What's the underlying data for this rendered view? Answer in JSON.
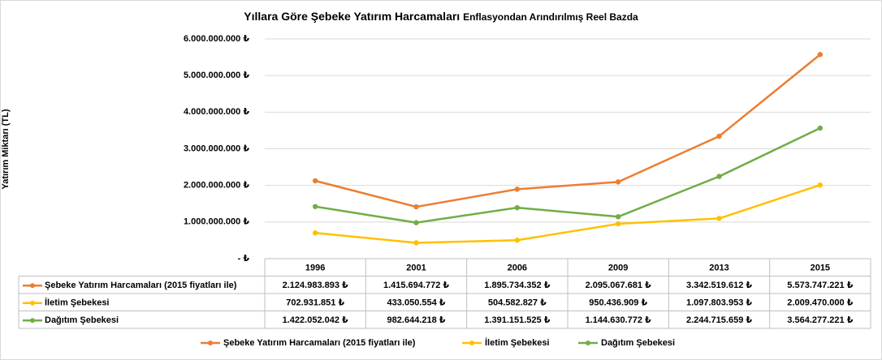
{
  "chart_data": {
    "type": "line",
    "title": "Yıllara Göre Şebeke Yatırım Harcamaları",
    "subtitle": "Enflasyondan Arındırılmış Reel Bazda",
    "ylabel": "Yatırım Miktarı  (TL)",
    "xlabel": "",
    "categories": [
      "1996",
      "2001",
      "2006",
      "2009",
      "2013",
      "2015"
    ],
    "ylim": [
      0,
      6000000000
    ],
    "y_ticks": [
      {
        "value": 0,
        "label": "-   ₺"
      },
      {
        "value": 1000000000,
        "label": "1.000.000.000 ₺"
      },
      {
        "value": 2000000000,
        "label": "2.000.000.000 ₺"
      },
      {
        "value": 3000000000,
        "label": "3.000.000.000 ₺"
      },
      {
        "value": 4000000000,
        "label": "4.000.000.000 ₺"
      },
      {
        "value": 5000000000,
        "label": "5.000.000.000 ₺"
      },
      {
        "value": 6000000000,
        "label": "6.000.000.000 ₺"
      }
    ],
    "grid": true,
    "legend_position": "bottom",
    "data_table": true,
    "series": [
      {
        "name": "Şebeke Yatırım Harcamaları (2015 fiyatları ile)",
        "color": "#ED7D31",
        "values": [
          2124983893,
          1415694772,
          1895734352,
          2095067681,
          3342519612,
          5573747221
        ],
        "labels": [
          "2.124.983.893 ₺",
          "1.415.694.772 ₺",
          "1.895.734.352 ₺",
          "2.095.067.681 ₺",
          "3.342.519.612 ₺",
          "5.573.747.221 ₺"
        ]
      },
      {
        "name": "İletim Şebekesi",
        "color": "#FFC000",
        "values": [
          702931851,
          433050554,
          504582827,
          950436909,
          1097803953,
          2009470000
        ],
        "labels": [
          "702.931.851 ₺",
          "433.050.554 ₺",
          "504.582.827 ₺",
          "950.436.909 ₺",
          "1.097.803.953 ₺",
          "2.009.470.000 ₺"
        ]
      },
      {
        "name": "Dağıtım Şebekesi",
        "color": "#70AD47",
        "values": [
          1422052042,
          982644218,
          1391151525,
          1144630772,
          2244715659,
          3564277221
        ],
        "labels": [
          "1.422.052.042 ₺",
          "982.644.218 ₺",
          "1.391.151.525 ₺",
          "1.144.630.772 ₺",
          "2.244.715.659 ₺",
          "3.564.277.221 ₺"
        ]
      }
    ]
  }
}
